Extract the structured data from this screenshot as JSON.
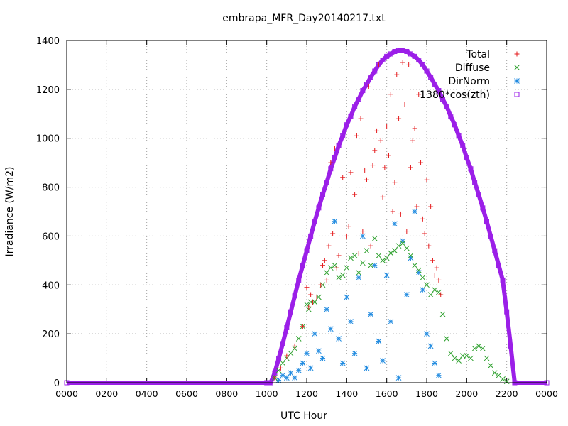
{
  "chart_data": {
    "type": "scatter",
    "title": "embrapa_MFR_Day20140217.txt",
    "xlabel": "UTC Hour",
    "ylabel": "Irradiance (W/m2)",
    "xlim": [
      0,
      2400
    ],
    "ylim": [
      0,
      1400
    ],
    "x_ticks": [
      "0000",
      "0200",
      "0400",
      "0600",
      "0800",
      "1000",
      "1200",
      "1400",
      "1600",
      "1800",
      "2000",
      "2200",
      "0000"
    ],
    "y_ticks": [
      "0",
      "200",
      "400",
      "600",
      "800",
      "1000",
      "1200",
      "1400"
    ],
    "grid": true,
    "legend_position": "top-right",
    "series": [
      {
        "name": "Total",
        "color": "#e41a1c",
        "marker": "plus",
        "x": [
          1040,
          1070,
          1100,
          1140,
          1180,
          1200,
          1210,
          1220,
          1230,
          1250,
          1270,
          1280,
          1290,
          1300,
          1310,
          1320,
          1330,
          1340,
          1350,
          1360,
          1380,
          1400,
          1410,
          1420,
          1440,
          1450,
          1460,
          1470,
          1480,
          1490,
          1500,
          1510,
          1520,
          1530,
          1540,
          1550,
          1560,
          1570,
          1580,
          1590,
          1600,
          1610,
          1620,
          1630,
          1640,
          1650,
          1660,
          1670,
          1680,
          1690,
          1700,
          1710,
          1720,
          1730,
          1740,
          1750,
          1760,
          1770,
          1780,
          1790,
          1800,
          1810,
          1820,
          1830,
          1840,
          1850,
          1860,
          1870
        ],
        "y": [
          20,
          60,
          110,
          150,
          230,
          390,
          310,
          360,
          330,
          350,
          400,
          480,
          500,
          420,
          560,
          900,
          610,
          960,
          470,
          520,
          840,
          600,
          640,
          860,
          770,
          1010,
          530,
          1080,
          620,
          870,
          830,
          1210,
          560,
          890,
          950,
          1030,
          1300,
          990,
          760,
          880,
          1050,
          930,
          1180,
          700,
          820,
          1260,
          1080,
          690,
          1310,
          1140,
          620,
          1300,
          880,
          990,
          1040,
          720,
          1180,
          900,
          670,
          610,
          830,
          560,
          720,
          500,
          440,
          470,
          420,
          360
        ]
      },
      {
        "name": "Diffuse",
        "color": "#2ca02c",
        "marker": "cross",
        "x": [
          1040,
          1060,
          1080,
          1100,
          1120,
          1140,
          1160,
          1180,
          1200,
          1210,
          1220,
          1240,
          1260,
          1280,
          1300,
          1320,
          1340,
          1360,
          1380,
          1400,
          1420,
          1440,
          1460,
          1480,
          1500,
          1520,
          1540,
          1560,
          1580,
          1600,
          1620,
          1640,
          1660,
          1680,
          1700,
          1720,
          1740,
          1760,
          1780,
          1800,
          1820,
          1840,
          1860,
          1880,
          1900,
          1920,
          1940,
          1960,
          1980,
          2000,
          2020,
          2040,
          2060,
          2080,
          2100,
          2120,
          2140,
          2160,
          2180,
          2200
        ],
        "y": [
          20,
          50,
          80,
          100,
          120,
          140,
          180,
          230,
          320,
          300,
          330,
          330,
          350,
          400,
          450,
          470,
          480,
          430,
          440,
          470,
          510,
          520,
          450,
          490,
          540,
          480,
          590,
          520,
          500,
          510,
          530,
          540,
          560,
          570,
          550,
          520,
          480,
          460,
          430,
          400,
          360,
          380,
          370,
          280,
          180,
          120,
          100,
          90,
          110,
          110,
          100,
          140,
          150,
          140,
          100,
          70,
          40,
          30,
          15,
          5
        ]
      },
      {
        "name": "DirNorm",
        "color": "#1f8ae0",
        "marker": "star",
        "x": [
          1060,
          1080,
          1100,
          1120,
          1140,
          1160,
          1180,
          1200,
          1220,
          1240,
          1260,
          1280,
          1300,
          1320,
          1340,
          1360,
          1380,
          1400,
          1420,
          1440,
          1460,
          1480,
          1500,
          1520,
          1540,
          1560,
          1580,
          1600,
          1620,
          1640,
          1660,
          1680,
          1700,
          1720,
          1740,
          1760,
          1780,
          1800,
          1820,
          1840,
          1860
        ],
        "y": [
          10,
          30,
          20,
          40,
          20,
          50,
          80,
          120,
          60,
          200,
          130,
          100,
          300,
          220,
          660,
          180,
          80,
          350,
          250,
          120,
          430,
          600,
          60,
          280,
          480,
          170,
          90,
          440,
          250,
          650,
          20,
          580,
          360,
          510,
          700,
          450,
          380,
          200,
          150,
          80,
          30
        ]
      },
      {
        "name": "1380*cos(zth)",
        "color": "#9b1fe8",
        "marker": "square",
        "x": [
          0,
          1000,
          1020,
          1040,
          1060,
          1080,
          1100,
          1120,
          1140,
          1160,
          1180,
          1200,
          1220,
          1240,
          1260,
          1280,
          1300,
          1320,
          1340,
          1360,
          1380,
          1400,
          1420,
          1440,
          1460,
          1480,
          1500,
          1520,
          1540,
          1560,
          1580,
          1600,
          1620,
          1640,
          1660,
          1680,
          1700,
          1720,
          1740,
          1760,
          1780,
          1800,
          1820,
          1840,
          1860,
          1880,
          1900,
          1920,
          1940,
          1960,
          1980,
          2000,
          2020,
          2040,
          2060,
          2080,
          2100,
          2120,
          2140,
          2160,
          2180,
          2200,
          2220,
          2240,
          2400
        ],
        "y": [
          0,
          0,
          0,
          40,
          100,
          160,
          225,
          290,
          355,
          420,
          480,
          540,
          600,
          660,
          715,
          770,
          820,
          875,
          920,
          970,
          1010,
          1055,
          1090,
          1130,
          1160,
          1195,
          1220,
          1250,
          1275,
          1300,
          1320,
          1335,
          1345,
          1355,
          1360,
          1360,
          1355,
          1345,
          1335,
          1320,
          1300,
          1275,
          1250,
          1220,
          1195,
          1160,
          1130,
          1090,
          1055,
          1010,
          970,
          920,
          875,
          820,
          770,
          715,
          660,
          600,
          540,
          480,
          420,
          290,
          150,
          0,
          0
        ]
      }
    ]
  }
}
